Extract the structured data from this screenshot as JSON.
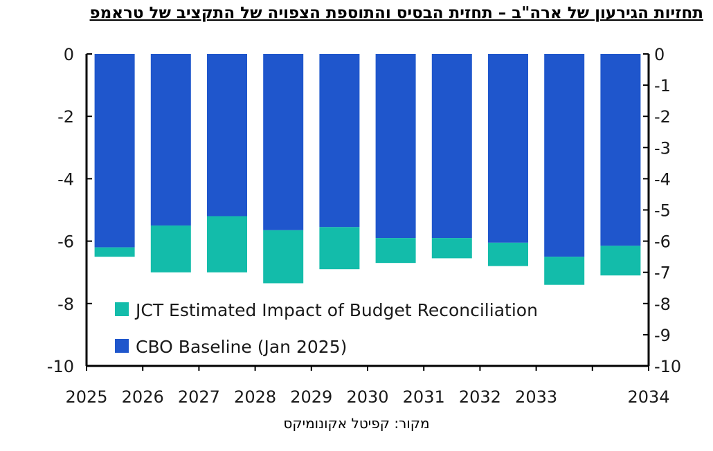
{
  "title": "תחזיות הגירעון של ארה\"ב – תחזית הבסיס והתוספת הצפויה של התקציב של טראמפ",
  "source": "מקור: קפיטל אקונומיקס",
  "colors": {
    "baseline": "#1f56cc",
    "impact": "#13bcaa",
    "axis": "#000000"
  },
  "chart_data": {
    "type": "bar",
    "stacked": true,
    "categories": [
      "2025",
      "2026",
      "2027",
      "2028",
      "2029",
      "2030",
      "2031",
      "2032",
      "2033",
      "2034"
    ],
    "x_tick_labels": [
      "2025",
      "2026",
      "2027",
      "2028",
      "2029",
      "2030",
      "2031",
      "2032",
      "2033",
      "2034"
    ],
    "series": [
      {
        "name": "CBO Baseline (Jan 2025)",
        "values": [
          -6.2,
          -5.5,
          -5.2,
          -5.65,
          -5.55,
          -5.9,
          -5.9,
          -6.05,
          -6.5,
          -6.15
        ]
      },
      {
        "name": "JCT Estimated Impact of Budget Reconciliation",
        "values": [
          -0.3,
          -1.5,
          -1.8,
          -1.7,
          -1.35,
          -0.8,
          -0.65,
          -0.75,
          -0.9,
          -0.95
        ]
      }
    ],
    "legend": [
      "JCT Estimated Impact of Budget Reconciliation",
      "CBO Baseline (Jan 2025)"
    ],
    "legend_position": "bottom-left inside",
    "y_left": {
      "ylim": [
        -10,
        0
      ],
      "ticks": [
        "0",
        "-2",
        "-4",
        "-6",
        "-8",
        "-10"
      ]
    },
    "y_right": {
      "ylim": [
        -10,
        0
      ],
      "ticks": [
        "0",
        "-1",
        "-2",
        "-3",
        "-4",
        "-5",
        "-6",
        "-7",
        "-8",
        "-9",
        "-10"
      ]
    },
    "xlabel": "",
    "ylabel": "",
    "grid": false
  }
}
